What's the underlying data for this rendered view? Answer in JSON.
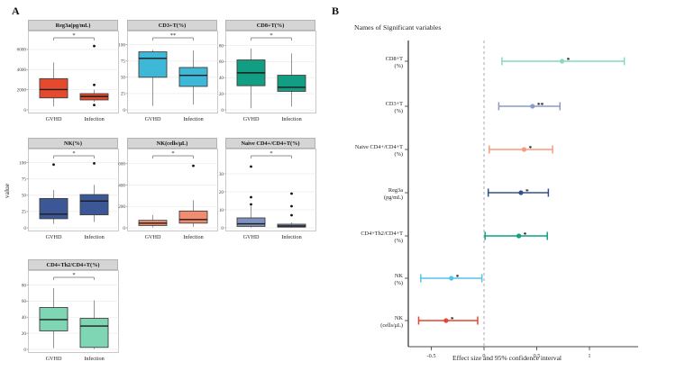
{
  "figure": {
    "panel_a_label": "A",
    "panel_b_label": "B"
  },
  "chart_data": [
    {
      "type": "boxplot",
      "panel": "A",
      "ylabel": "value",
      "categories": [
        "GVHD",
        "Infection"
      ],
      "grid": "3 columns, panels placed by row/col",
      "panels": [
        {
          "id": "reg3a",
          "title": "Reg3a(pg/mL)",
          "color": "#e64a2e",
          "row": 0,
          "col": 0,
          "ylim": [
            0,
            6800
          ],
          "yticks": [
            0,
            2000,
            4000,
            6000
          ],
          "sig": "*",
          "boxes": [
            {
              "group": "GVHD",
              "whislo": 340,
              "q1": 1190,
              "med": 2020,
              "q3": 3100,
              "whishi": 4700,
              "outliers": []
            },
            {
              "group": "Infection",
              "whislo": 800,
              "q1": 990,
              "med": 1330,
              "q3": 1610,
              "whishi": 2000,
              "outliers": [
                6340,
                2480,
                480
              ]
            }
          ]
        },
        {
          "id": "cd3t",
          "title": "CD3+T(%)",
          "color": "#3fb8d8",
          "row": 0,
          "col": 1,
          "ylim": [
            0,
            105
          ],
          "yticks": [
            0,
            25,
            50,
            75,
            100
          ],
          "sig": "**",
          "boxes": [
            {
              "group": "GVHD",
              "whislo": 6,
              "q1": 50,
              "med": 79,
              "q3": 89,
              "whishi": 92,
              "outliers": []
            },
            {
              "group": "Infection",
              "whislo": 8,
              "q1": 36,
              "med": 53,
              "q3": 65,
              "whishi": 91,
              "outliers": []
            }
          ]
        },
        {
          "id": "cd8t",
          "title": "CD8+T(%)",
          "color": "#129e82",
          "row": 0,
          "col": 2,
          "ylim": [
            0,
            85
          ],
          "yticks": [
            0,
            20,
            40,
            60,
            80
          ],
          "sig": "*",
          "boxes": [
            {
              "group": "GVHD",
              "whislo": 2,
              "q1": 30,
              "med": 46,
              "q3": 62,
              "whishi": 76,
              "outliers": []
            },
            {
              "group": "Infection",
              "whislo": 4,
              "q1": 23,
              "med": 28,
              "q3": 43,
              "whishi": 70,
              "outliers": []
            }
          ]
        },
        {
          "id": "nk-pct",
          "title": "NK(%)",
          "color": "#3b5795",
          "row": 1,
          "col": 0,
          "ylim": [
            0,
            105
          ],
          "yticks": [
            0,
            25,
            50,
            75,
            100
          ],
          "sig": "*",
          "boxes": [
            {
              "group": "GVHD",
              "whislo": 6,
              "q1": 14,
              "med": 21,
              "q3": 45,
              "whishi": 58,
              "outliers": [
                97
              ]
            },
            {
              "group": "Infection",
              "whislo": 9,
              "q1": 20,
              "med": 41,
              "q3": 51,
              "whishi": 66,
              "outliers": [
                99
              ]
            }
          ]
        },
        {
          "id": "nk-cells",
          "title": "NK(cells/μL)",
          "color": "#f18d6e",
          "row": 1,
          "col": 1,
          "ylim": [
            0,
            640
          ],
          "yticks": [
            0,
            200,
            400,
            600
          ],
          "sig": "*",
          "boxes": [
            {
              "group": "GVHD",
              "whislo": 5,
              "q1": 22,
              "med": 44,
              "q3": 70,
              "whishi": 120,
              "outliers": []
            },
            {
              "group": "Infection",
              "whislo": 11,
              "q1": 44,
              "med": 77,
              "q3": 157,
              "whishi": 258,
              "outliers": [
                580
              ]
            }
          ]
        },
        {
          "id": "naive-cd4",
          "title": "Naive CD4+/CD4+T(%)",
          "color": "#7e92bf",
          "row": 1,
          "col": 2,
          "ylim": [
            0,
            38
          ],
          "yticks": [
            0,
            10,
            20,
            30
          ],
          "sig": "*",
          "boxes": [
            {
              "group": "GVHD",
              "whislo": 0.2,
              "q1": 0.8,
              "med": 2.2,
              "q3": 5.5,
              "whishi": 12,
              "outliers": [
                34,
                17,
                13
              ]
            },
            {
              "group": "Infection",
              "whislo": 0.1,
              "q1": 0.4,
              "med": 1.0,
              "q3": 2.0,
              "whishi": 3.0,
              "outliers": [
                19,
                12,
                7
              ]
            }
          ]
        },
        {
          "id": "cd4-th2",
          "title": "CD4+Th2/CD4+T(%)",
          "color": "#7fd6b4",
          "row": 2,
          "col": 0,
          "ylim": [
            0,
            85
          ],
          "yticks": [
            0,
            20,
            40,
            60,
            80
          ],
          "sig": "*",
          "boxes": [
            {
              "group": "GVHD",
              "whislo": 1.5,
              "q1": 23,
              "med": 37,
              "q3": 52,
              "whishi": 76,
              "outliers": []
            },
            {
              "group": "Infection",
              "whislo": 0.6,
              "q1": 2.5,
              "med": 29,
              "q3": 38.5,
              "whishi": 61,
              "outliers": []
            }
          ]
        }
      ]
    },
    {
      "type": "forest",
      "panel": "B",
      "title": "Names of Significant variables",
      "xlabel": "Effect size and 95% confidence interval",
      "xlim": [
        -0.72,
        1.46
      ],
      "xticks": [
        -0.5,
        0,
        0.5,
        1
      ],
      "xtick_labels": [
        "-0.5",
        "0",
        "0.5",
        "1"
      ],
      "reference_line": 0,
      "rows": [
        {
          "name": "CD8+T",
          "unit": "(%)",
          "est": 0.74,
          "lo": 0.17,
          "hi": 1.33,
          "sig": "*",
          "color": "#82dcba"
        },
        {
          "name": "CD3+T",
          "unit": "(%)",
          "est": 0.46,
          "lo": 0.14,
          "hi": 0.72,
          "sig": "**",
          "color": "#8b9ac9"
        },
        {
          "name": "Naive CD4+/CD4+T",
          "unit": "(%)",
          "est": 0.38,
          "lo": 0.05,
          "hi": 0.65,
          "sig": "*",
          "color": "#f89a7d"
        },
        {
          "name": "Reg3a",
          "unit": "(pg/mL)",
          "est": 0.35,
          "lo": 0.04,
          "hi": 0.61,
          "sig": "*",
          "color": "#33508d"
        },
        {
          "name": "CD4+Th2/CD4+T",
          "unit": "(%)",
          "est": 0.33,
          "lo": 0.01,
          "hi": 0.6,
          "sig": "*",
          "color": "#0ca183"
        },
        {
          "name": "NK",
          "unit": "(%)",
          "est": -0.31,
          "lo": -0.6,
          "hi": -0.02,
          "sig": "*",
          "color": "#52c3e9"
        },
        {
          "name": "NK",
          "unit": "(cells/μL)",
          "est": -0.36,
          "lo": -0.62,
          "hi": -0.06,
          "sig": "*",
          "color": "#e6452e"
        }
      ]
    }
  ]
}
